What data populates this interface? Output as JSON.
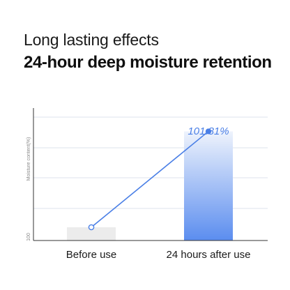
{
  "header": {
    "title": "Long lasting effects",
    "subtitle": "24-hour deep moisture retention"
  },
  "chart_data": {
    "type": "bar",
    "categories": [
      "Before use",
      "24 hours after use"
    ],
    "values": [
      100,
      101.81
    ],
    "ylabel": "Moisture content(%)",
    "ytick_labels": [
      "100"
    ],
    "data_labels": [
      "",
      "101.81%"
    ],
    "ylim": [
      99.75,
      102.25
    ],
    "grid": true,
    "legend": "none",
    "overlay_line": true,
    "colors": {
      "bar_before": "#ececec",
      "bar_after_top": "#eef3fc",
      "bar_after_bottom": "#5b8def",
      "line": "#4a7fe6",
      "label": "#4a7fe6",
      "grid": "#dde3ee",
      "axis": "#333333"
    }
  }
}
